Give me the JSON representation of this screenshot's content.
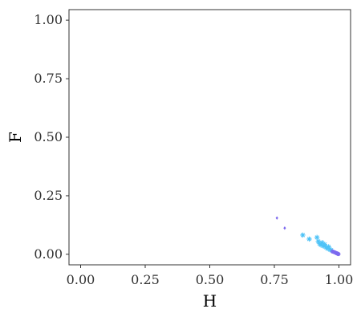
{
  "chart_data": {
    "type": "scatter",
    "xlabel": "H",
    "ylabel": "F",
    "xlim": [
      -0.045,
      1.045
    ],
    "ylim": [
      -0.045,
      1.045
    ],
    "x_ticks": [
      "0.00",
      "0.25",
      "0.50",
      "0.75",
      "1.00"
    ],
    "y_ticks": [
      "0.00",
      "0.25",
      "0.50",
      "0.75",
      "1.00"
    ],
    "grid": false,
    "legend": "none",
    "colors": {
      "primary": "#4fc3f7",
      "secondary": "#7b68ee"
    },
    "points": [
      {
        "x": 0.76,
        "y": 0.155,
        "color": "#7b68ee",
        "shape": "diamond"
      },
      {
        "x": 0.79,
        "y": 0.112,
        "color": "#7b68ee",
        "shape": "diamond"
      },
      {
        "x": 0.86,
        "y": 0.082,
        "color": "#4fc3f7",
        "shape": "star"
      },
      {
        "x": 0.885,
        "y": 0.065,
        "color": "#4fc3f7",
        "shape": "star"
      },
      {
        "x": 0.915,
        "y": 0.072,
        "color": "#4fc3f7",
        "shape": "star"
      },
      {
        "x": 0.92,
        "y": 0.055,
        "color": "#4fc3f7",
        "shape": "star"
      },
      {
        "x": 0.925,
        "y": 0.045,
        "color": "#4fc3f7",
        "shape": "star"
      },
      {
        "x": 0.93,
        "y": 0.04,
        "color": "#4fc3f7",
        "shape": "star"
      },
      {
        "x": 0.935,
        "y": 0.05,
        "color": "#4fc3f7",
        "shape": "star"
      },
      {
        "x": 0.94,
        "y": 0.035,
        "color": "#4fc3f7",
        "shape": "star"
      },
      {
        "x": 0.945,
        "y": 0.042,
        "color": "#4fc3f7",
        "shape": "star"
      },
      {
        "x": 0.95,
        "y": 0.03,
        "color": "#4fc3f7",
        "shape": "star"
      },
      {
        "x": 0.955,
        "y": 0.025,
        "color": "#4fc3f7",
        "shape": "star"
      },
      {
        "x": 0.96,
        "y": 0.032,
        "color": "#4fc3f7",
        "shape": "star"
      },
      {
        "x": 0.965,
        "y": 0.02,
        "color": "#4fc3f7",
        "shape": "star"
      },
      {
        "x": 0.97,
        "y": 0.018,
        "color": "#4fc3f7",
        "shape": "star"
      },
      {
        "x": 0.975,
        "y": 0.012,
        "color": "#7b68ee",
        "shape": "circle"
      },
      {
        "x": 0.98,
        "y": 0.01,
        "color": "#7b68ee",
        "shape": "circle"
      },
      {
        "x": 0.985,
        "y": 0.008,
        "color": "#7b68ee",
        "shape": "circle"
      },
      {
        "x": 0.99,
        "y": 0.005,
        "color": "#7b68ee",
        "shape": "circle"
      },
      {
        "x": 0.993,
        "y": 0.004,
        "color": "#7b68ee",
        "shape": "circle"
      },
      {
        "x": 0.996,
        "y": 0.002,
        "color": "#7b68ee",
        "shape": "circle"
      },
      {
        "x": 0.998,
        "y": 0.001,
        "color": "#7b68ee",
        "shape": "circle"
      }
    ]
  }
}
